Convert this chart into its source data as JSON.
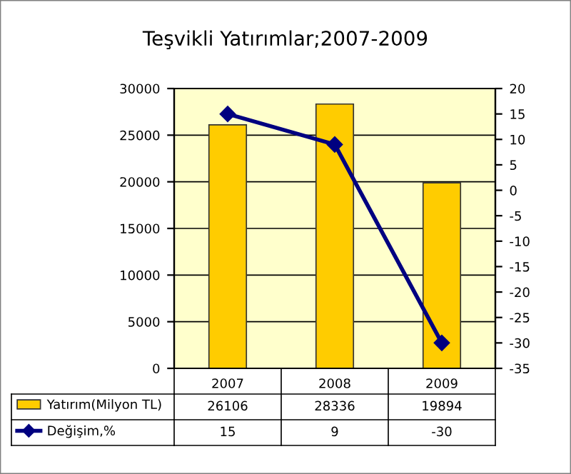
{
  "chart_data": {
    "type": "bar",
    "title": "Teşvikli Yatırımlar;2007-2009",
    "categories": [
      "2007",
      "2008",
      "2009"
    ],
    "series": [
      {
        "name": "Yatırım(Milyon TL)",
        "color": "#ffcc00",
        "values": [
          26106,
          28336,
          19894
        ]
      },
      {
        "name": "Değişim,%",
        "type": "line",
        "axis": "y2",
        "color": "#000080",
        "marker": "diamond",
        "values": [
          15,
          9,
          -30
        ]
      }
    ],
    "ylim": [
      0,
      30000
    ],
    "yticks": [
      0,
      5000,
      10000,
      15000,
      20000,
      25000,
      30000
    ],
    "y2lim": [
      -35,
      20
    ],
    "y2ticks": [
      -35,
      -30,
      -25,
      -20,
      -15,
      -10,
      -5,
      0,
      5,
      10,
      15,
      20
    ],
    "grid": "y",
    "legend": "bottom",
    "data_labels": true
  }
}
